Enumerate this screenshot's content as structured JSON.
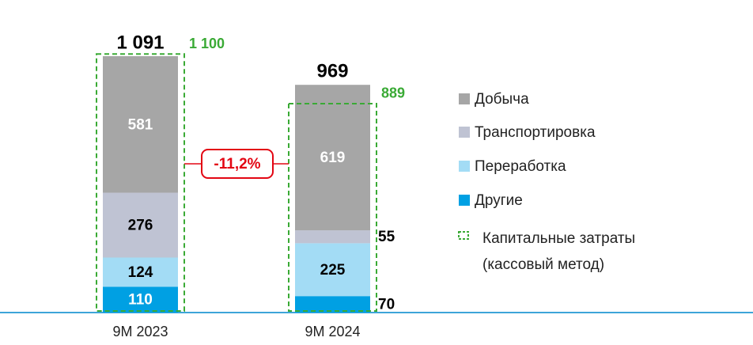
{
  "chart_data": {
    "type": "bar",
    "stacked": true,
    "categories": [
      "9M 2023",
      "9M 2024"
    ],
    "series": [
      {
        "name": "Другие",
        "color": "#00a0e3",
        "label_color": "#ffffff",
        "values": [
          110,
          70
        ]
      },
      {
        "name": "Переработка",
        "color": "#a3dcf5",
        "label_color": "#000000",
        "values": [
          124,
          225
        ]
      },
      {
        "name": "Транспортировка",
        "color": "#bfc3d3",
        "label_color": "#000000",
        "values": [
          276,
          55
        ]
      },
      {
        "name": "Добыча",
        "color": "#a6a6a6",
        "label_color": "#ffffff",
        "values": [
          581,
          619
        ]
      }
    ],
    "totals": {
      "values": [
        1091,
        969
      ],
      "value_labels": [
        "1 091",
        "969"
      ]
    },
    "capex": {
      "name_lines": [
        "Капитальные затраты",
        "(кассовый метод)"
      ],
      "color": "#3aaa35",
      "values": [
        1100,
        889
      ],
      "value_labels": [
        "1 100",
        "889"
      ]
    },
    "change": {
      "label": "-11,2%",
      "color": "#e30613"
    }
  }
}
